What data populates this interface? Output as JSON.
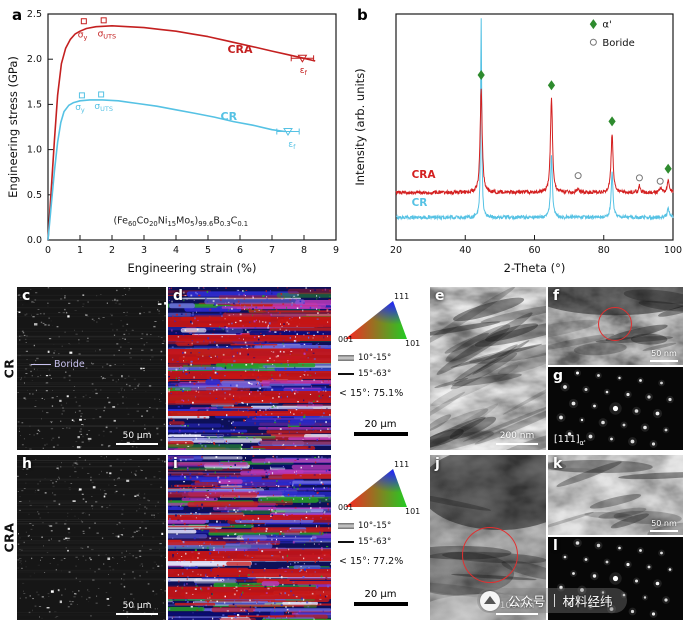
{
  "panels": {
    "a": {
      "letter": "a"
    },
    "b": {
      "letter": "b"
    },
    "c": {
      "letter": "c",
      "scale_bar": "50 μm",
      "annotation": "Boride"
    },
    "d": {
      "letter": "d"
    },
    "e": {
      "letter": "e",
      "scale_bar": "200 nm"
    },
    "f": {
      "letter": "f",
      "scale_bar": "50 nm"
    },
    "g": {
      "letter": "g",
      "zone_axis": [
        [
          "[111]",
          false
        ],
        [
          "α'",
          true
        ]
      ]
    },
    "h": {
      "letter": "h",
      "scale_bar": "50 μm"
    },
    "i": {
      "letter": "i"
    },
    "j": {
      "letter": "j",
      "scale_bar": "100 nm"
    },
    "k": {
      "letter": "k",
      "scale_bar": "50 nm"
    },
    "l": {
      "letter": "l"
    }
  },
  "row_labels": [
    "CR",
    "CRA"
  ],
  "legends": [
    {
      "ipf_corners": [
        "111",
        "001",
        "101"
      ],
      "lines": [
        "10°-15°",
        "15°-63°"
      ],
      "fraction": "< 15°: 75.1%",
      "scale_bar": "20 μm"
    },
    {
      "ipf_corners": [
        "111",
        "001",
        "101"
      ],
      "lines": [
        "10°-15°",
        "15°-63°"
      ],
      "fraction": "< 15°: 77.2%",
      "scale_bar": "20 μm"
    }
  ],
  "watermark": {
    "text1": "公众号",
    "text2": "材料经纬"
  },
  "chart_data": [
    {
      "id": "a",
      "type": "line",
      "xlabel": "Engineering strain (%)",
      "ylabel": "Engineering stress (GPa)",
      "xlim": [
        0,
        9
      ],
      "ylim": [
        0,
        2.5
      ],
      "xticks": [
        0,
        1,
        2,
        3,
        4,
        5,
        6,
        7,
        8,
        9
      ],
      "yticks": [
        "0.0",
        "0.5",
        "1.0",
        "1.5",
        "2.0",
        "2.5"
      ],
      "series": [
        {
          "name": "CRA",
          "color": "#c42020",
          "x": [
            0,
            0.1,
            0.2,
            0.3,
            0.42,
            0.55,
            0.7,
            0.85,
            1,
            1.2,
            1.5,
            2,
            2.5,
            3,
            3.5,
            4,
            4.5,
            5,
            5.5,
            6,
            6.5,
            7,
            7.5,
            8,
            8.35
          ],
          "y": [
            0,
            0.55,
            1.1,
            1.6,
            1.95,
            2.12,
            2.22,
            2.28,
            2.31,
            2.34,
            2.36,
            2.37,
            2.36,
            2.35,
            2.33,
            2.31,
            2.28,
            2.25,
            2.21,
            2.17,
            2.13,
            2.09,
            2.05,
            2.01,
            1.98
          ]
        },
        {
          "name": "CR",
          "color": "#56c2e4",
          "x": [
            0,
            0.1,
            0.2,
            0.3,
            0.4,
            0.5,
            0.65,
            0.8,
            1,
            1.3,
            1.7,
            2.2,
            2.8,
            3.4,
            4,
            4.6,
            5.2,
            5.8,
            6.4,
            7,
            7.4
          ],
          "y": [
            0,
            0.38,
            0.76,
            1.08,
            1.3,
            1.42,
            1.49,
            1.52,
            1.54,
            1.55,
            1.55,
            1.54,
            1.51,
            1.48,
            1.44,
            1.4,
            1.36,
            1.31,
            1.27,
            1.22,
            1.2
          ]
        }
      ],
      "annotations": [
        {
          "segs": [
            [
              "CRA",
              false
            ]
          ],
          "x": 6.0,
          "y": 2.07,
          "color": "#c42020",
          "size": 11,
          "weight": "bold"
        },
        {
          "segs": [
            [
              "CR",
              false
            ]
          ],
          "x": 5.65,
          "y": 1.33,
          "color": "#56c2e4",
          "size": 11,
          "weight": "bold"
        },
        {
          "segs": [
            [
              "σ",
              false
            ],
            [
              "y",
              true
            ]
          ],
          "x": 1.08,
          "y": 2.24,
          "color": "#c42020",
          "size": 9
        },
        {
          "segs": [
            [
              "σ",
              false
            ],
            [
              "UTS",
              true
            ]
          ],
          "x": 1.84,
          "y": 2.25,
          "color": "#c42020",
          "size": 9
        },
        {
          "segs": [
            [
              "σ",
              false
            ],
            [
              "y",
              true
            ]
          ],
          "x": 1.0,
          "y": 1.44,
          "color": "#56c2e4",
          "size": 9
        },
        {
          "segs": [
            [
              "σ",
              false
            ],
            [
              "UTS",
              true
            ]
          ],
          "x": 1.74,
          "y": 1.45,
          "color": "#56c2e4",
          "size": 9
        },
        {
          "segs": [
            [
              "ε",
              false
            ],
            [
              "f",
              true
            ]
          ],
          "x": 7.98,
          "y": 1.85,
          "color": "#c42020",
          "size": 9
        },
        {
          "segs": [
            [
              "ε",
              false
            ],
            [
              "f",
              true
            ]
          ],
          "x": 7.62,
          "y": 1.03,
          "color": "#56c2e4",
          "size": 9
        },
        {
          "segs": [
            [
              "(Fe",
              false
            ],
            [
              "60",
              true
            ],
            [
              "Co",
              false
            ],
            [
              "20",
              true
            ],
            [
              "Ni",
              false
            ],
            [
              "15",
              true
            ],
            [
              "Mo",
              false
            ],
            [
              "5",
              true
            ],
            [
              ")",
              false
            ],
            [
              "99.6",
              true
            ],
            [
              "B",
              false
            ],
            [
              "0.3",
              true
            ],
            [
              "C",
              false
            ],
            [
              "0.1",
              true
            ]
          ],
          "x": 4.15,
          "y": 0.18,
          "color": "#222222",
          "size": 9.5
        }
      ],
      "markers": [
        {
          "type": "square",
          "x": 1.12,
          "y": 2.42,
          "color": "#c42020"
        },
        {
          "type": "square",
          "x": 1.74,
          "y": 2.43,
          "color": "#c42020"
        },
        {
          "type": "square",
          "x": 1.06,
          "y": 1.6,
          "color": "#56c2e4"
        },
        {
          "type": "square",
          "x": 1.66,
          "y": 1.61,
          "color": "#56c2e4"
        },
        {
          "type": "errbar",
          "x1": 7.6,
          "x2": 8.3,
          "y": 2.01,
          "color": "#c42020"
        },
        {
          "type": "tri",
          "x": 7.95,
          "y": 2.01,
          "color": "#c42020"
        },
        {
          "type": "errbar",
          "x1": 7.15,
          "x2": 7.85,
          "y": 1.2,
          "color": "#56c2e4"
        },
        {
          "type": "tri",
          "x": 7.5,
          "y": 1.2,
          "color": "#56c2e4"
        }
      ]
    },
    {
      "id": "b",
      "type": "line",
      "xlabel": "2-Theta (°)",
      "ylabel": "Intensity (arb. units)",
      "xlim": [
        20,
        100
      ],
      "xticks": [
        20,
        40,
        60,
        80,
        100
      ],
      "series": [
        {
          "name": "CR",
          "color": "#56c2e4",
          "baseline": 0.1,
          "label_x": 24.5,
          "label_yn": 0.15,
          "peaks": [
            {
              "x": 44.6,
              "h": 0.88,
              "w": 0.18
            },
            {
              "x": 64.9,
              "h": 0.27,
              "w": 0.3
            },
            {
              "x": 82.4,
              "h": 0.2,
              "w": 0.3
            },
            {
              "x": 98.6,
              "h": 0.05,
              "w": 0.3
            }
          ]
        },
        {
          "name": "CRA",
          "color": "#d42020",
          "baseline": 0.21,
          "label_x": 24.5,
          "label_yn": 0.275,
          "peaks": [
            {
              "x": 44.6,
              "h": 0.46,
              "w": 0.35
            },
            {
              "x": 64.9,
              "h": 0.42,
              "w": 0.35
            },
            {
              "x": 72.6,
              "h": 0.02,
              "w": 0.3
            },
            {
              "x": 82.4,
              "h": 0.26,
              "w": 0.35
            },
            {
              "x": 90.3,
              "h": 0.03,
              "w": 0.3
            },
            {
              "x": 96.4,
              "h": 0.025,
              "w": 0.3
            },
            {
              "x": 98.6,
              "h": 0.06,
              "w": 0.3
            }
          ]
        }
      ],
      "diamonds": {
        "color": "#2e8b2e",
        "points": [
          [
            44.6,
            0.73
          ],
          [
            64.9,
            0.685
          ],
          [
            82.4,
            0.525
          ],
          [
            98.6,
            0.315
          ]
        ]
      },
      "circles": {
        "color": "#777777",
        "points": [
          [
            72.6,
            0.285
          ],
          [
            90.3,
            0.275
          ],
          [
            96.3,
            0.26
          ]
        ]
      },
      "legend": {
        "x": 77,
        "items": [
          {
            "symbol": "diamond",
            "color": "#2e8b2e",
            "label": "α'",
            "yn": 0.955
          },
          {
            "symbol": "circle",
            "color": "#777777",
            "label": "Boride",
            "yn": 0.875
          }
        ]
      }
    }
  ]
}
